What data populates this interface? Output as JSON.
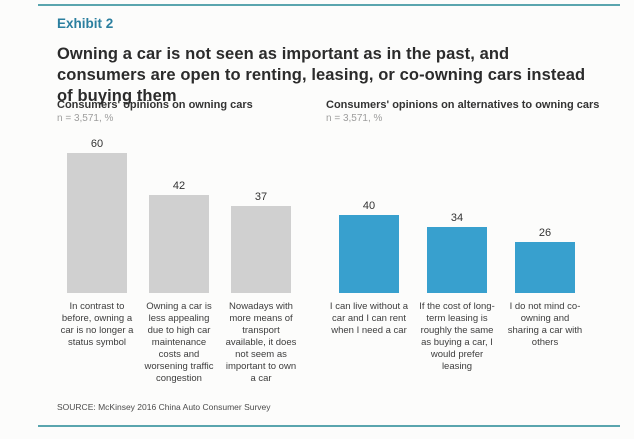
{
  "page": {
    "exhibit_label": "Exhibit 2",
    "title": "Owning a car is not seen as important as in the past, and consumers are open to renting, leasing, or co-owning cars instead of buying them",
    "source": "SOURCE: McKinsey 2016 China Auto Consumer Survey"
  },
  "colors": {
    "accent_teal": "#2b7f9f",
    "rule_teal": "#5aa5ae",
    "bar_gray": "#d0d0d0",
    "bar_blue": "#38a0ce",
    "title_text": "#2b2b2b",
    "muted_text": "#9d9d9d"
  },
  "chart_data": [
    {
      "type": "bar",
      "title": "Consumers' opinions on owning cars",
      "subtitle": "n = 3,571, %",
      "categories": [
        "In contrast to before, owning a car is no longer a status symbol",
        "Owning a car is less appealing due to high car maintenance costs and worsening traffic congestion",
        "Nowadays with more means of transport available, it does not seem as important to own a car"
      ],
      "values": [
        60,
        42,
        37
      ],
      "bar_color": "#d0d0d0",
      "value_labels": "above bars",
      "ylim": [
        0,
        65
      ],
      "grid": false,
      "legend": "none"
    },
    {
      "type": "bar",
      "title": "Consumers' opinions on alternatives to owning cars",
      "subtitle": "n = 3,571, %",
      "categories": [
        "I can live without a car and I can rent when I need a car",
        "If the cost of long-term leasing is roughly the same as buying a car, I would prefer leasing",
        "I do not mind co-owning and sharing a car with others"
      ],
      "values": [
        40,
        34,
        26
      ],
      "bar_color": "#38a0ce",
      "value_labels": "above bars",
      "ylim": [
        0,
        78
      ],
      "grid": false,
      "legend": "none"
    }
  ]
}
